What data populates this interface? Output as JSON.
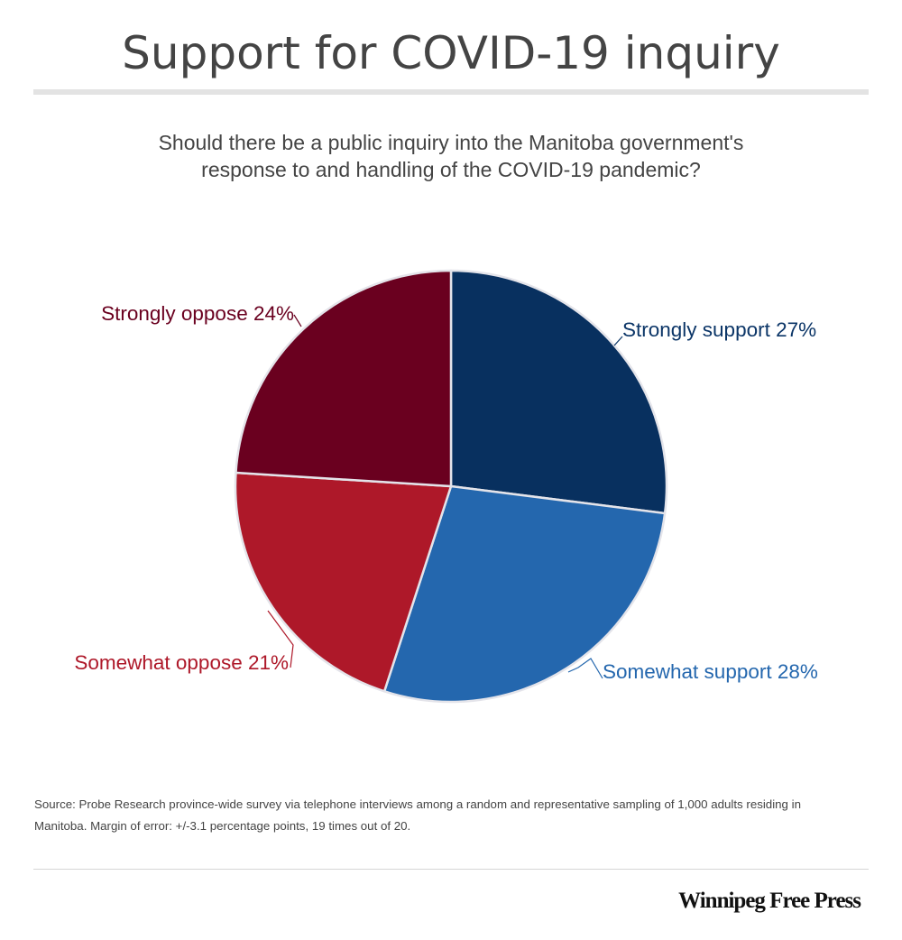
{
  "header": {
    "title": "Support for COVID-19 inquiry",
    "subtitle_line1": "Should there be a public inquiry into the Manitoba government's",
    "subtitle_line2": "response to and handling of the COVID-19 pandemic?"
  },
  "chart_data": {
    "type": "pie",
    "title": "Support for COVID-19 inquiry",
    "start_angle": "12 o'clock, clockwise",
    "slices": [
      {
        "label": "Strongly support",
        "value": 27,
        "color": "#08305f",
        "label_color": "#0b3567",
        "label_text": "Strongly support 27%"
      },
      {
        "label": "Somewhat support",
        "value": 28,
        "color": "#2467ae",
        "label_color": "#2467ae",
        "label_text": "Somewhat support 28%"
      },
      {
        "label": "Somewhat oppose",
        "value": 21,
        "color": "#ae1829",
        "label_color": "#ae1829",
        "label_text": "Somewhat oppose 21%"
      },
      {
        "label": "Strongly oppose",
        "value": 24,
        "color": "#6a001f",
        "label_color": "#6a001f",
        "label_text": "Strongly oppose 24%"
      }
    ],
    "unit": "%",
    "legend": "none (direct labels)"
  },
  "footer": {
    "source_line1": "Source:  Probe Research province-wide survey via telephone interviews among a random and representative sampling of 1,000 adults residing in",
    "source_line2": "Manitoba.  Margin of error: +/-3.1 percentage points, 19 times out of 20.",
    "logo_text": "Winnipeg Free Press"
  }
}
